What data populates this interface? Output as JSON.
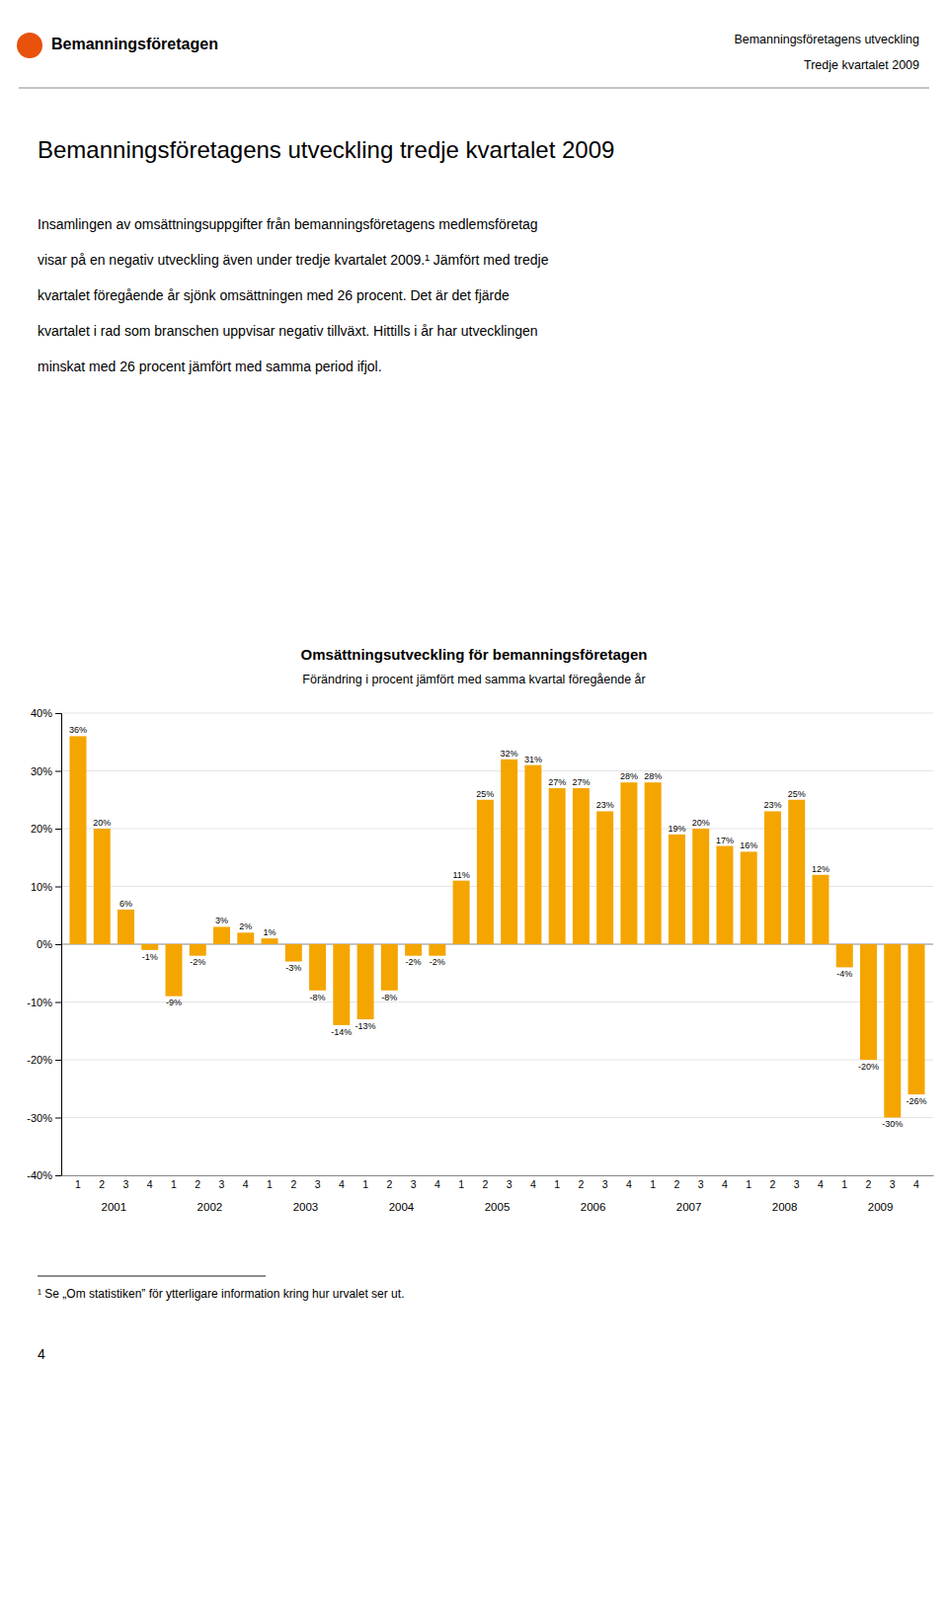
{
  "header": [
    "Bemanningsföretagens utveckling",
    "Tredje kvartalet 2009"
  ],
  "logo": {
    "text": "Bemanningsföretagen",
    "color": "#E8520A"
  },
  "main_title": "Bemanningsföretagens utveckling tredje kvartalet 2009",
  "body": [
    "Insamlingen av omsättningsuppgifter från bemanningsföretagens medlemsföretag",
    "visar på en negativ utveckling även under tredje kvartalet 2009.¹ Jämfört med tredje",
    "kvartalet föregående år sjönk omsättningen med 26 procent. Det är det fjärde",
    "kvartalet i rad som branschen uppvisar negativ tillväxt. Hittills i år har utvecklingen",
    "minskat med 26 procent jämfört med samma period ifjol."
  ],
  "footnote": "¹ Se „Om statistiken” för ytterligare information kring hur urvalet ser ut.",
  "page_number": "4",
  "chart_data": {
    "type": "bar",
    "title": "Omsättningsutveckling för bemanningsföretagen",
    "subtitle": "Förändring i procent jämfört med samma kvartal föregående år",
    "categories": [
      "1",
      "2",
      "3",
      "4",
      "1",
      "2",
      "3",
      "4",
      "1",
      "2",
      "3",
      "4",
      "1",
      "2",
      "3",
      "4",
      "1",
      "2",
      "3",
      "4",
      "1",
      "2",
      "3",
      "4",
      "1",
      "2",
      "3",
      "4",
      "1",
      "2",
      "3",
      "4",
      "1",
      "2",
      "3",
      "4"
    ],
    "groups": [
      "2001",
      "2002",
      "2003",
      "2004",
      "2005",
      "2006",
      "2007",
      "2008",
      "2009"
    ],
    "values": [
      36,
      20,
      6,
      -1,
      -9,
      -2,
      3,
      2,
      1,
      -3,
      -8,
      -14,
      -13,
      -8,
      -2,
      -2,
      11,
      25,
      32,
      31,
      27,
      27,
      23,
      28,
      28,
      19,
      20,
      17,
      16,
      23,
      25,
      12,
      -4,
      -20,
      -30,
      -26
    ],
    "value_labels": [
      "36%",
      "20%",
      "6%",
      "-1%",
      "-9%",
      "-2%",
      "3%",
      "2%",
      "1%",
      "-3%",
      "-8%",
      "-14%",
      "-13%",
      "-8%",
      "-2%",
      "-2%",
      "11%",
      "25%",
      "32%",
      "31%",
      "27%",
      "27%",
      "23%",
      "28%",
      "28%",
      "19%",
      "20%",
      "17%",
      "16%",
      "23%",
      "25%",
      "12%",
      "-4%",
      "-20%",
      "-30%",
      "-26%"
    ],
    "data_labels": true,
    "color": "#F5A500",
    "ylim": [
      -40,
      40
    ],
    "yticks": [
      {
        "value": -40,
        "label": "-40%"
      },
      {
        "value": -30,
        "label": "-30%"
      },
      {
        "value": -20,
        "label": "-20%"
      },
      {
        "value": -10,
        "label": "-10%"
      },
      {
        "value": 0,
        "label": "0%"
      },
      {
        "value": 10,
        "label": "10%"
      },
      {
        "value": 20,
        "label": "20%"
      },
      {
        "value": 30,
        "label": "30%"
      },
      {
        "value": 40,
        "label": "40%"
      }
    ],
    "grid": true
  }
}
